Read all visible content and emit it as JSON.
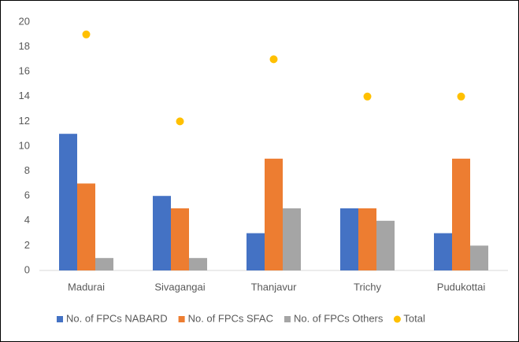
{
  "chart_data": {
    "type": "bar",
    "categories": [
      "Madurai",
      "Sivagangai",
      "Thanjavur",
      "Trichy",
      "Pudukottai"
    ],
    "series": [
      {
        "name": "No. of FPCs NABARD",
        "color": "#4472c4",
        "values": [
          11,
          6,
          3,
          5,
          3
        ]
      },
      {
        "name": "No. of FPCs SFAC",
        "color": "#ed7d31",
        "values": [
          7,
          5,
          9,
          5,
          9
        ]
      },
      {
        "name": "No. of FPCs Others",
        "color": "#a5a5a5",
        "values": [
          1,
          1,
          5,
          4,
          2
        ]
      },
      {
        "name": "Total",
        "color": "#ffc000",
        "type": "scatter",
        "values": [
          19,
          12,
          17,
          14,
          14
        ]
      }
    ],
    "ylim": [
      0,
      20
    ],
    "yticks": [
      0,
      2,
      4,
      6,
      8,
      10,
      12,
      14,
      16,
      18,
      20
    ],
    "grid": false,
    "legend": "bottom"
  }
}
